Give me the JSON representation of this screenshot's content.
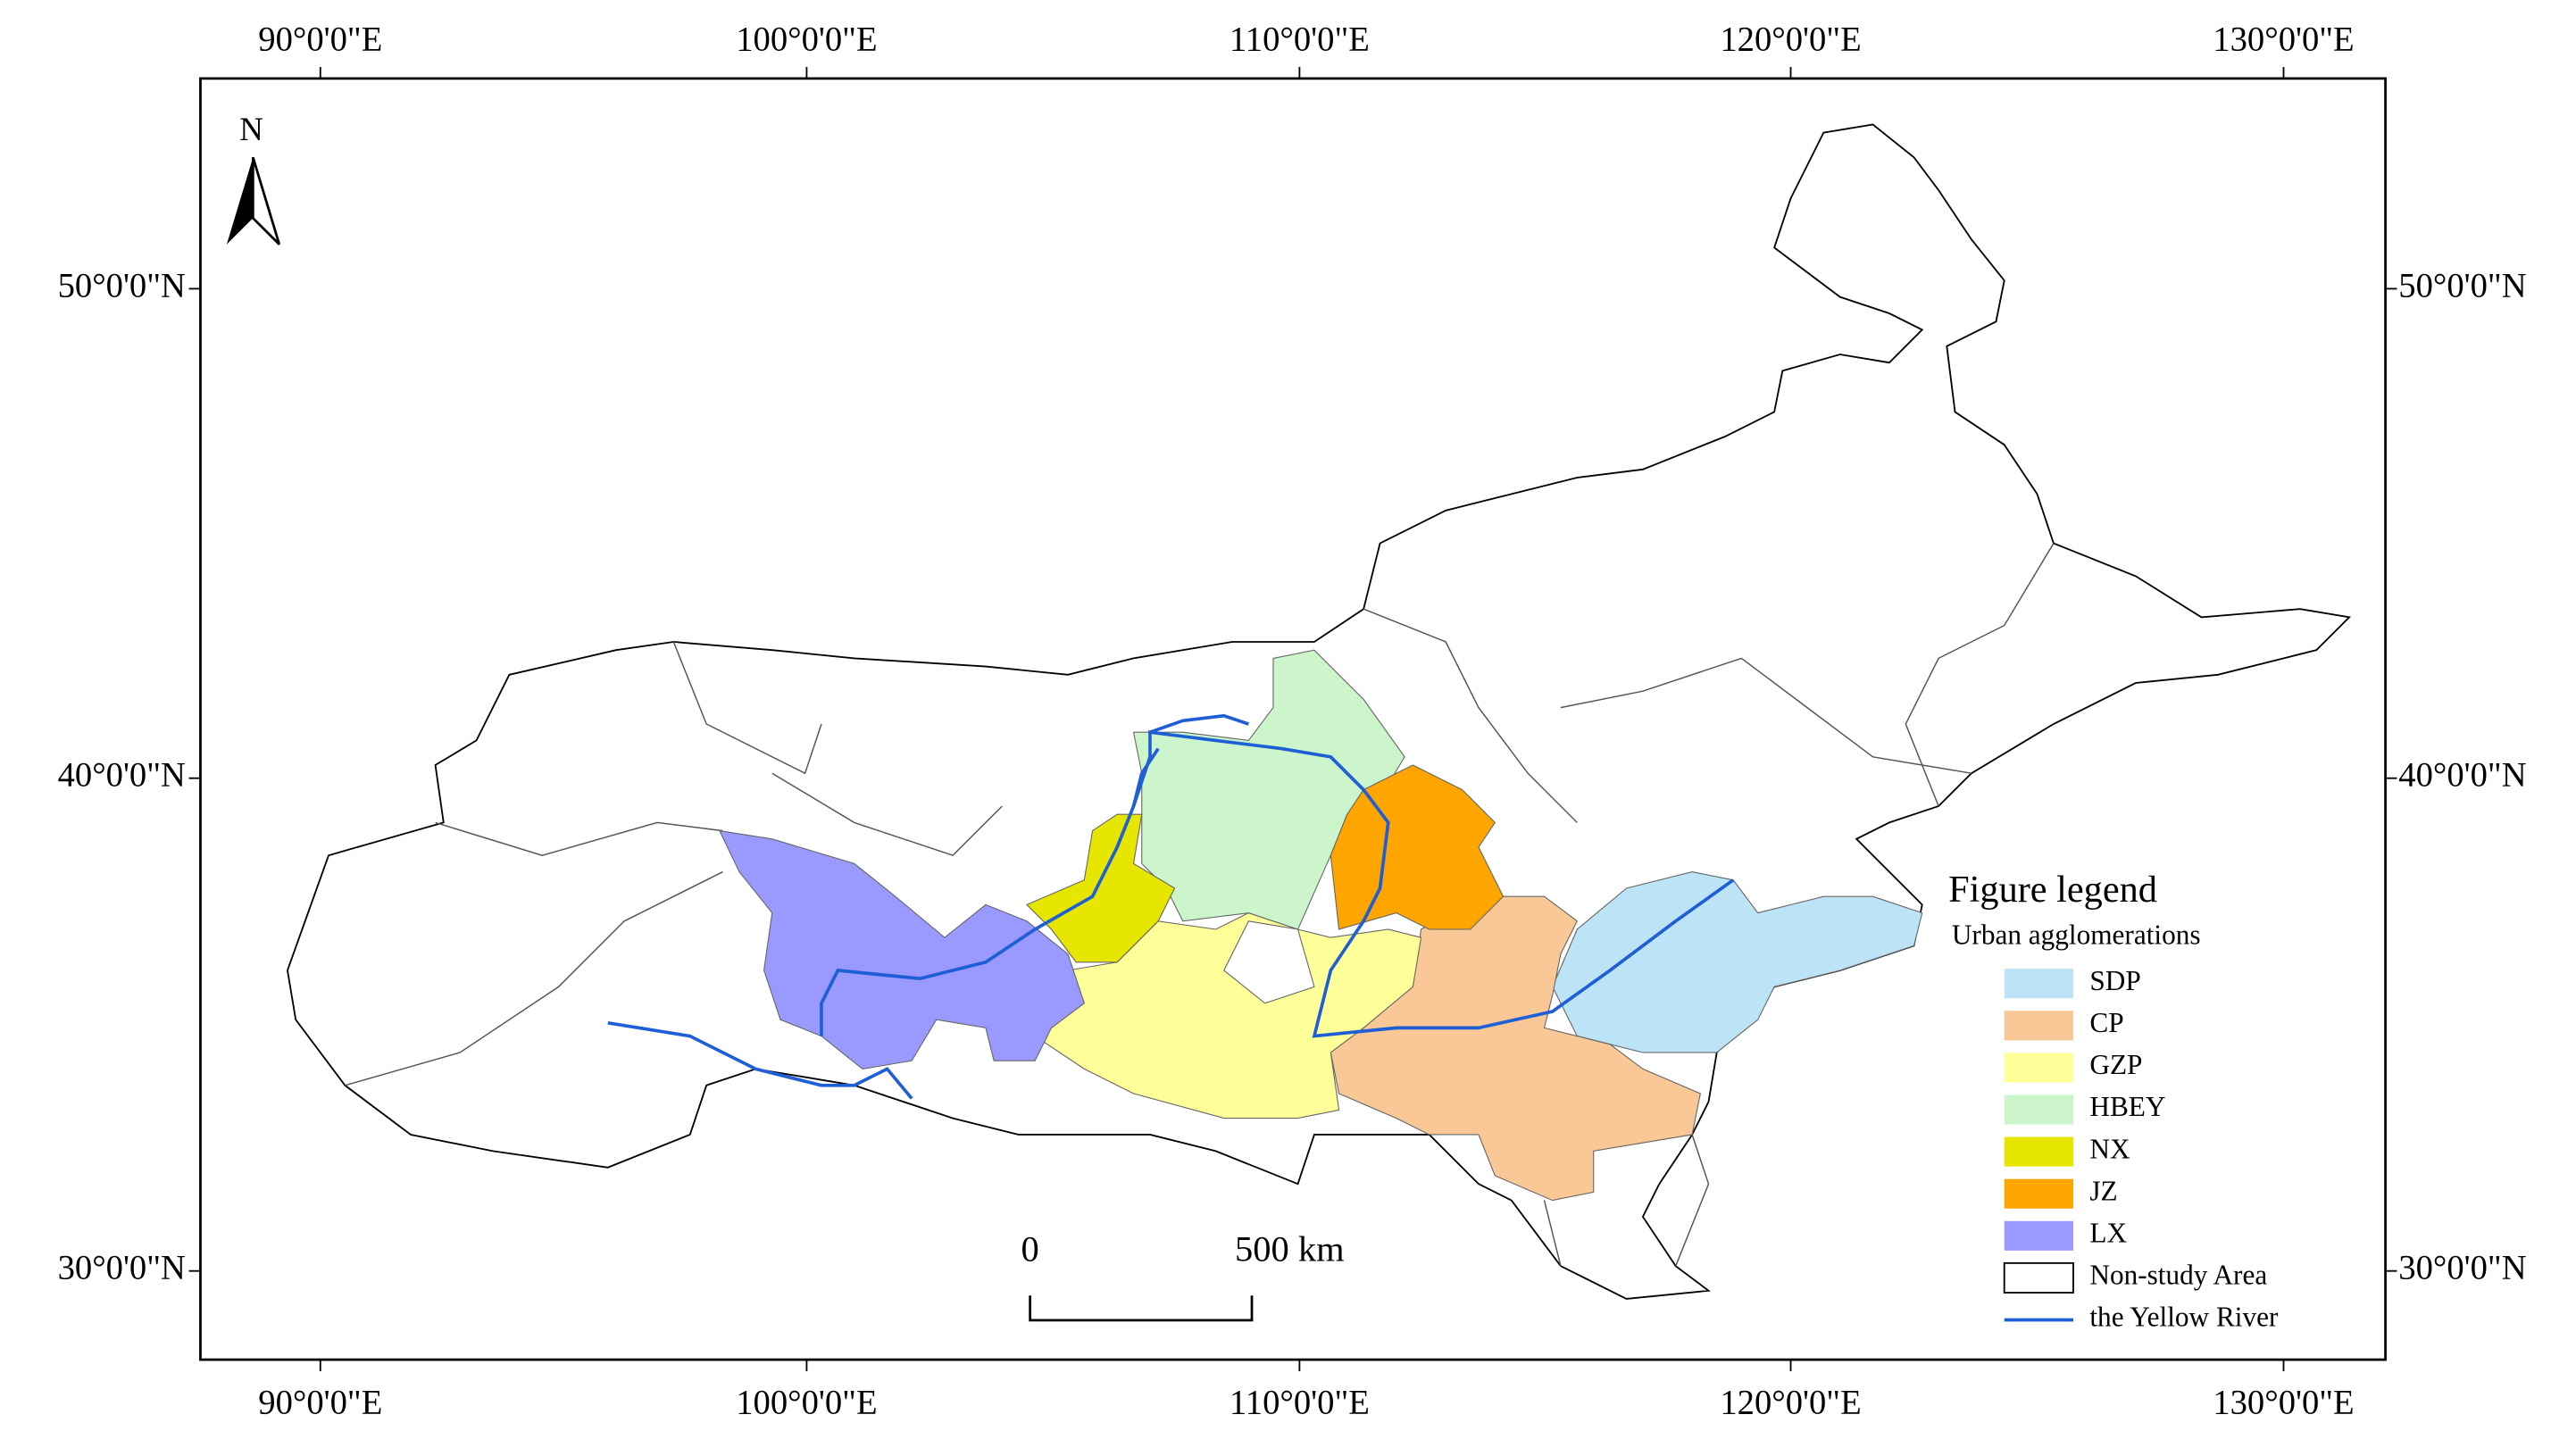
{
  "map": {
    "lon_labels": [
      "90°0'0\"E",
      "100°0'0\"E",
      "110°0'0\"E",
      "120°0'0\"E",
      "130°0'0\"E"
    ],
    "lat_labels": [
      "50°0'0\"N",
      "40°0'0\"N",
      "30°0'0\"N"
    ],
    "north": "N",
    "scale_bar": {
      "start": "0",
      "end": "500 km"
    },
    "legend": {
      "title": "Figure legend",
      "subtitle": "Urban agglomerations",
      "items": [
        {
          "label": "SDP",
          "color": "#bde3f7"
        },
        {
          "label": "CP",
          "color": "#f9c896"
        },
        {
          "label": "GZP",
          "color": "#ffff99"
        },
        {
          "label": "HBEY",
          "color": "#ccf5cc"
        },
        {
          "label": "NX",
          "color": "#e6e600"
        },
        {
          "label": "JZ",
          "color": "#ffa500"
        },
        {
          "label": "LX",
          "color": "#9999ff"
        },
        {
          "label": "Non-study Area",
          "color": "#ffffff"
        },
        {
          "label": "the Yellow River",
          "color": "#1f5fd6"
        }
      ]
    }
  }
}
